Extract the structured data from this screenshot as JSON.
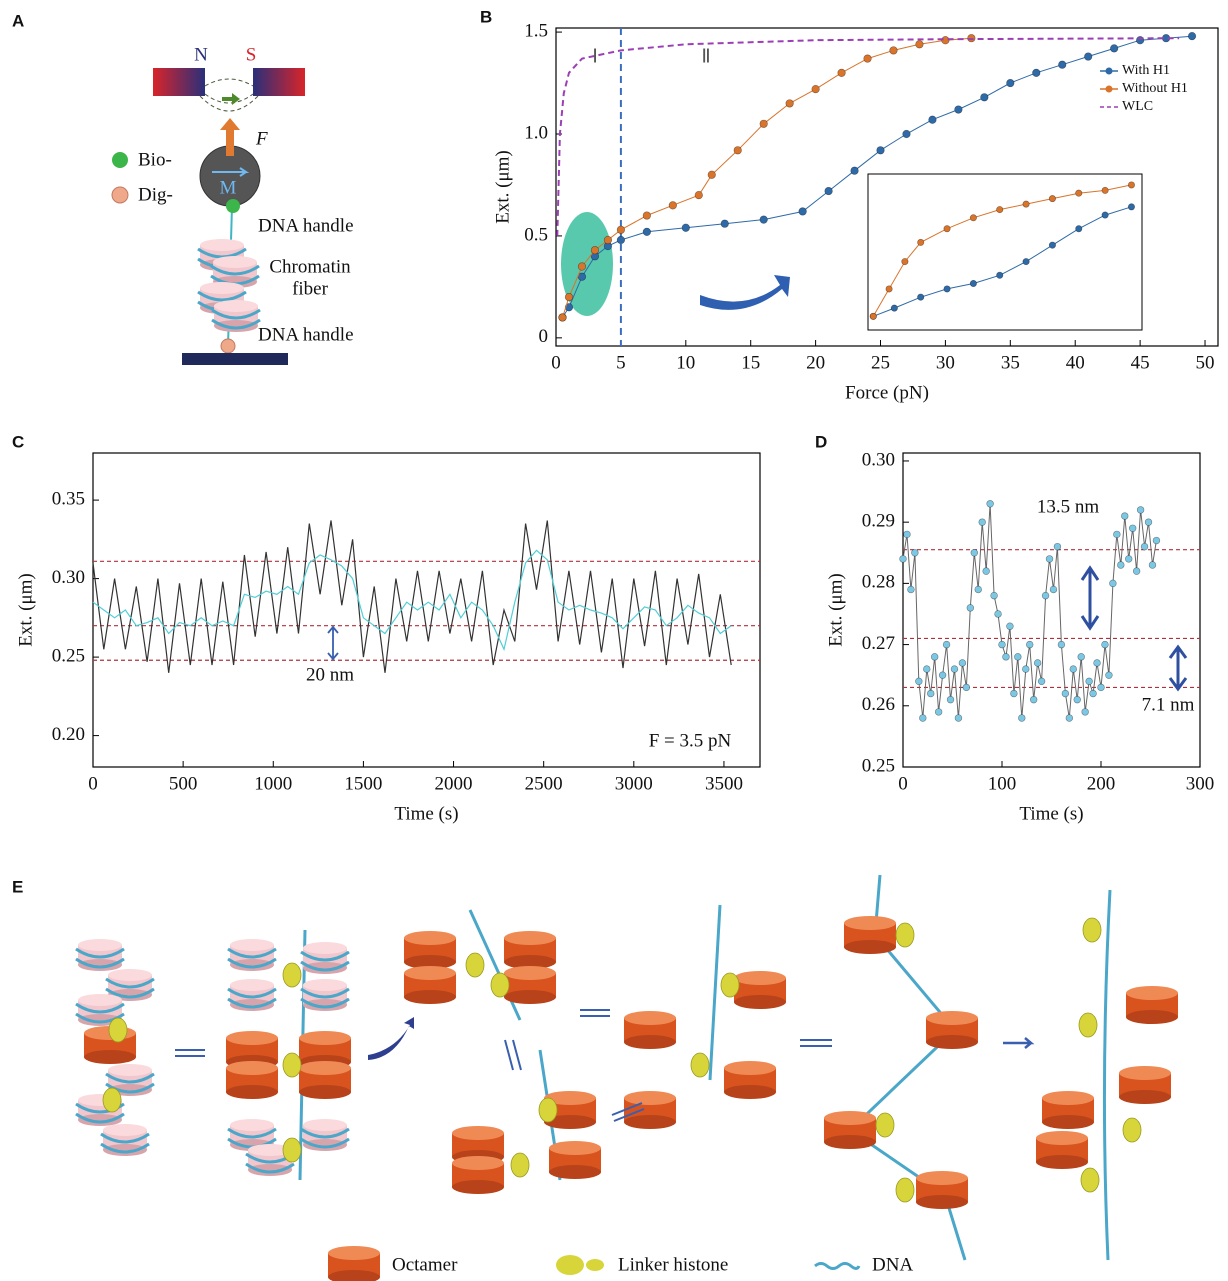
{
  "panel_a": {
    "label": "A",
    "magnet_n": "N",
    "magnet_s": "S",
    "force": "F",
    "moment": "M",
    "legend": [
      "Bio-",
      "Dig-"
    ],
    "top_handle": "DNA handle",
    "chromatin_fiber": [
      "Chromatin",
      "fiber"
    ],
    "bottom_handle": "DNA handle"
  },
  "panel_e": {
    "label": "E",
    "legend": [
      "Octamer",
      "Linker histone",
      "DNA"
    ]
  },
  "chart_data": [
    {
      "panel": "B",
      "type": "line",
      "x_label": "Force (pN)",
      "y_label": "Ext. (μm)",
      "xlim": [
        0,
        51
      ],
      "ylim": [
        -0.04,
        1.52
      ],
      "xticks": [
        0,
        5,
        10,
        15,
        20,
        25,
        30,
        35,
        40,
        45,
        50
      ],
      "yticks": [
        0,
        0.5,
        {
          "value": 1,
          "label": "1.0"
        },
        1.5
      ],
      "vline": 5,
      "regions": [
        "Ⅰ",
        "Ⅱ"
      ],
      "legend": "upper right",
      "series": [
        {
          "name": "With H1",
          "color": "#2e6aa8",
          "marker": true,
          "x": [
            0.5,
            1,
            2,
            3,
            4,
            5,
            7,
            10,
            13,
            16,
            19,
            21,
            23,
            25,
            27,
            29,
            31,
            33,
            35,
            37,
            39,
            41,
            43,
            45,
            47,
            49
          ],
          "values": [
            0.1,
            0.15,
            0.3,
            0.4,
            0.45,
            0.48,
            0.52,
            0.54,
            0.56,
            0.58,
            0.62,
            0.72,
            0.82,
            0.92,
            1.0,
            1.07,
            1.12,
            1.18,
            1.25,
            1.3,
            1.34,
            1.38,
            1.42,
            1.46,
            1.47,
            1.48
          ]
        },
        {
          "name": "Without H1",
          "color": "#d9742a",
          "marker": true,
          "x": [
            0.5,
            1,
            2,
            3,
            4,
            5,
            7,
            9,
            11,
            12,
            14,
            16,
            18,
            20,
            22,
            24,
            26,
            28,
            30,
            32
          ],
          "values": [
            0.1,
            0.2,
            0.35,
            0.43,
            0.48,
            0.53,
            0.6,
            0.65,
            0.7,
            0.8,
            0.92,
            1.05,
            1.15,
            1.22,
            1.3,
            1.37,
            1.41,
            1.44,
            1.46,
            1.47
          ]
        },
        {
          "name": "WLC",
          "color": "#9b3fb5",
          "dashed": true,
          "x": [
            0.1,
            0.3,
            0.6,
            1,
            2,
            5,
            10,
            20,
            30,
            48
          ],
          "values": [
            0.5,
            1.0,
            1.2,
            1.3,
            1.37,
            1.41,
            1.44,
            1.46,
            1.465,
            1.47
          ]
        }
      ],
      "inset": {
        "xlim": [
          0,
          5.2
        ],
        "ylim": [
          0.05,
          0.62
        ],
        "series": [
          {
            "color": "#2e6aa8",
            "marker": true,
            "x": [
              0.1,
              0.5,
              1,
              1.5,
              2,
              2.5,
              3,
              3.5,
              4,
              4.5,
              5
            ],
            "values": [
              0.1,
              0.13,
              0.17,
              0.2,
              0.22,
              0.25,
              0.3,
              0.36,
              0.42,
              0.47,
              0.5
            ]
          },
          {
            "color": "#d9742a",
            "marker": true,
            "x": [
              0.1,
              0.4,
              0.7,
              1,
              1.5,
              2,
              2.5,
              3,
              3.5,
              4,
              4.5,
              5
            ],
            "values": [
              0.1,
              0.2,
              0.3,
              0.37,
              0.42,
              0.46,
              0.49,
              0.51,
              0.53,
              0.55,
              0.56,
              0.58
            ]
          }
        ]
      }
    },
    {
      "panel": "C",
      "type": "line",
      "x_label": "Time (s)",
      "y_label": "Ext. (μm)",
      "xlim": [
        0,
        3700
      ],
      "ylim": [
        0.18,
        0.38
      ],
      "xticks": [
        0,
        500,
        1000,
        1500,
        2000,
        2500,
        3000,
        3500
      ],
      "yticks": [
        {
          "value": 0.2,
          "label": "0.20"
        },
        0.25,
        {
          "value": 0.3,
          "label": "0.30"
        },
        0.35
      ],
      "hlines": [
        0.248,
        0.27,
        0.311
      ],
      "annotations": [
        "20 nm",
        "F = 3.5 pN"
      ],
      "x": [
        0,
        60,
        120,
        180,
        240,
        300,
        360,
        420,
        480,
        540,
        600,
        660,
        720,
        780,
        840,
        900,
        960,
        1020,
        1080,
        1140,
        1200,
        1260,
        1320,
        1380,
        1440,
        1500,
        1560,
        1620,
        1680,
        1740,
        1800,
        1860,
        1920,
        1980,
        2040,
        2100,
        2160,
        2220,
        2280,
        2340,
        2400,
        2460,
        2520,
        2580,
        2640,
        2700,
        2760,
        2820,
        2880,
        2940,
        3000,
        3060,
        3120,
        3180,
        3240,
        3300,
        3360,
        3420,
        3480,
        3540
      ],
      "series": [
        {
          "color": "#333333",
          "values": [
            0.31,
            0.255,
            0.3,
            0.255,
            0.295,
            0.247,
            0.3,
            0.24,
            0.297,
            0.245,
            0.3,
            0.245,
            0.298,
            0.245,
            0.315,
            0.263,
            0.317,
            0.265,
            0.32,
            0.265,
            0.335,
            0.29,
            0.337,
            0.283,
            0.325,
            0.25,
            0.295,
            0.24,
            0.3,
            0.26,
            0.305,
            0.26,
            0.305,
            0.265,
            0.3,
            0.26,
            0.305,
            0.245,
            0.28,
            0.26,
            0.335,
            0.293,
            0.337,
            0.26,
            0.305,
            0.258,
            0.305,
            0.253,
            0.3,
            0.243,
            0.3,
            0.257,
            0.305,
            0.245,
            0.3,
            0.258,
            0.303,
            0.25,
            0.29,
            0.245
          ]
        },
        {
          "color": "#4fcfd6",
          "values": [
            0.285,
            0.28,
            0.275,
            0.28,
            0.27,
            0.272,
            0.275,
            0.265,
            0.272,
            0.27,
            0.275,
            0.27,
            0.273,
            0.27,
            0.29,
            0.288,
            0.292,
            0.29,
            0.295,
            0.29,
            0.31,
            0.315,
            0.312,
            0.308,
            0.3,
            0.275,
            0.27,
            0.265,
            0.275,
            0.285,
            0.28,
            0.285,
            0.28,
            0.29,
            0.275,
            0.285,
            0.28,
            0.27,
            0.255,
            0.285,
            0.31,
            0.318,
            0.312,
            0.285,
            0.28,
            0.283,
            0.28,
            0.278,
            0.275,
            0.268,
            0.275,
            0.282,
            0.28,
            0.27,
            0.275,
            0.283,
            0.278,
            0.275,
            0.265,
            0.27
          ]
        }
      ]
    },
    {
      "panel": "D",
      "type": "line",
      "x_label": "Time (s)",
      "y_label": "Ext. (μm)",
      "xlim": [
        0,
        300
      ],
      "ylim": [
        0.25,
        0.3013
      ],
      "xticks": [
        0,
        100,
        200,
        300
      ],
      "yticks": [
        0.25,
        0.26,
        0.27,
        0.28,
        0.29,
        {
          "value": 0.3,
          "label": "0.30"
        }
      ],
      "hlines": [
        0.263,
        0.271,
        0.2855
      ],
      "annotations": [
        "13.5 nm",
        "7.1 nm"
      ],
      "x": [
        0,
        4,
        8,
        12,
        16,
        20,
        24,
        28,
        32,
        36,
        40,
        44,
        48,
        52,
        56,
        60,
        64,
        68,
        72,
        76,
        80,
        84,
        88,
        92,
        96,
        100,
        104,
        108,
        112,
        116,
        120,
        124,
        128,
        132,
        136,
        140,
        144,
        148,
        152,
        156,
        160,
        164,
        168,
        172,
        176,
        180,
        184,
        188,
        192,
        196,
        200,
        204,
        208,
        212,
        216,
        220,
        224,
        228,
        232,
        236,
        240,
        244,
        248,
        252,
        256
      ],
      "series": [
        {
          "color": "#7cc8e4",
          "line_color": "#666666",
          "marker": true,
          "values": [
            0.284,
            0.288,
            0.279,
            0.285,
            0.264,
            0.258,
            0.266,
            0.262,
            0.268,
            0.259,
            0.265,
            0.27,
            0.261,
            0.266,
            0.258,
            0.267,
            0.263,
            0.276,
            0.285,
            0.279,
            0.29,
            0.282,
            0.293,
            0.278,
            0.275,
            0.27,
            0.268,
            0.273,
            0.262,
            0.268,
            0.258,
            0.266,
            0.27,
            0.261,
            0.267,
            0.264,
            0.278,
            0.284,
            0.279,
            0.286,
            0.27,
            0.262,
            0.258,
            0.266,
            0.261,
            0.268,
            0.259,
            0.264,
            0.262,
            0.267,
            0.263,
            0.27,
            0.265,
            0.28,
            0.288,
            0.283,
            0.291,
            0.284,
            0.289,
            0.282,
            0.292,
            0.286,
            0.29,
            0.283,
            0.287
          ]
        }
      ]
    }
  ]
}
